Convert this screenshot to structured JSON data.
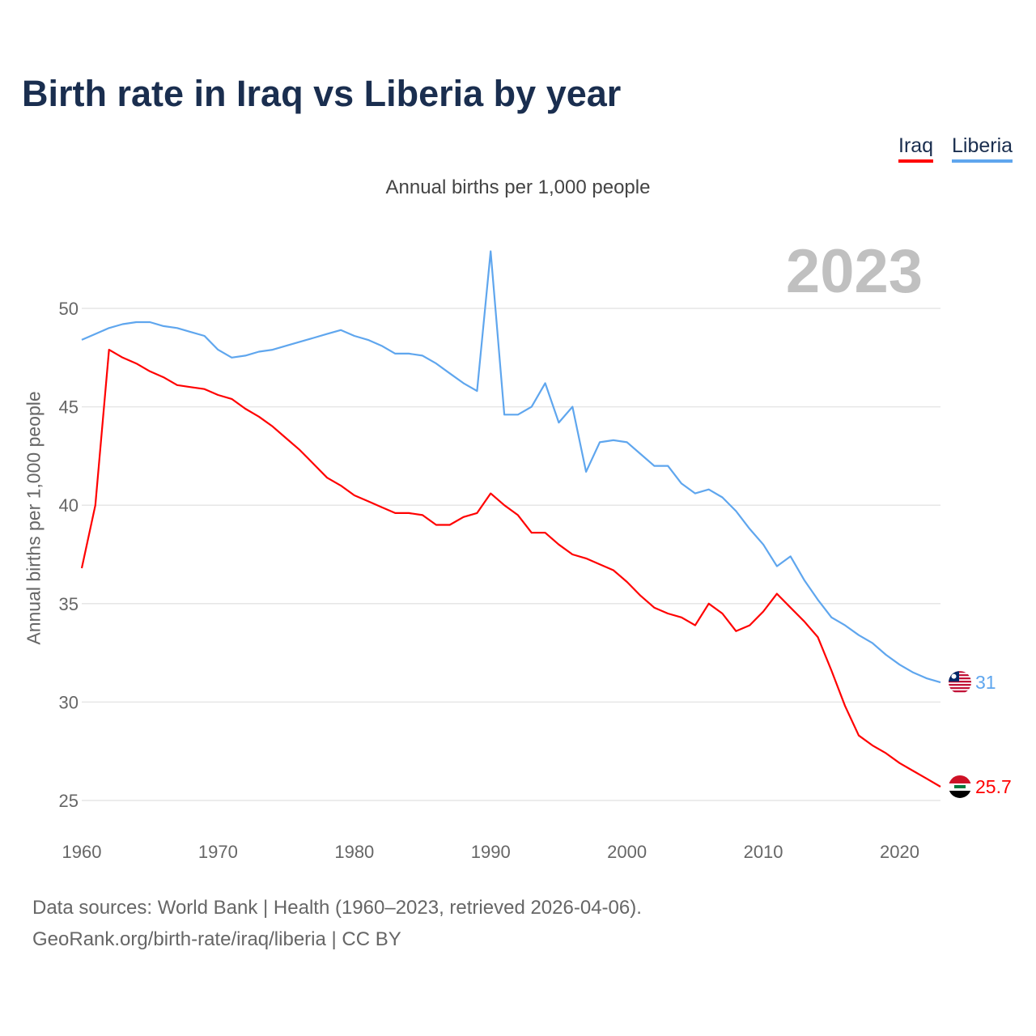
{
  "chart_data": {
    "type": "line",
    "title": "Birth rate in Iraq vs Liberia by year",
    "subtitle": "Annual births per 1,000 people",
    "ylabel": "Annual births per 1,000 people",
    "xlabel": "",
    "year_label": "2023",
    "ylim": [
      25,
      53
    ],
    "xlim": [
      1960,
      2023
    ],
    "y_ticks": [
      25,
      30,
      35,
      40,
      45,
      50
    ],
    "x_ticks": [
      1960,
      1970,
      1980,
      1990,
      2000,
      2010,
      2020
    ],
    "grid": true,
    "legend_position": "top-right",
    "x": [
      1960,
      1961,
      1962,
      1963,
      1964,
      1965,
      1966,
      1967,
      1968,
      1969,
      1970,
      1971,
      1972,
      1973,
      1974,
      1975,
      1976,
      1977,
      1978,
      1979,
      1980,
      1981,
      1982,
      1983,
      1984,
      1985,
      1986,
      1987,
      1988,
      1989,
      1990,
      1991,
      1992,
      1993,
      1994,
      1995,
      1996,
      1997,
      1998,
      1999,
      2000,
      2001,
      2002,
      2003,
      2004,
      2005,
      2006,
      2007,
      2008,
      2009,
      2010,
      2011,
      2012,
      2013,
      2014,
      2015,
      2016,
      2017,
      2018,
      2019,
      2020,
      2021,
      2022,
      2023
    ],
    "series": [
      {
        "name": "Iraq",
        "color": "#ff0000",
        "end_label": "25.7",
        "values": [
          36.8,
          40.0,
          47.9,
          47.5,
          47.2,
          46.8,
          46.5,
          46.1,
          46.0,
          45.9,
          45.6,
          45.4,
          44.9,
          44.5,
          44.0,
          43.4,
          42.8,
          42.1,
          41.4,
          41.0,
          40.5,
          40.2,
          39.9,
          39.6,
          39.6,
          39.5,
          39.0,
          39.0,
          39.4,
          39.6,
          40.6,
          40.0,
          39.5,
          38.6,
          38.6,
          38.0,
          37.5,
          37.3,
          37.0,
          36.7,
          36.1,
          35.4,
          34.8,
          34.5,
          34.3,
          33.9,
          35.0,
          34.5,
          33.6,
          33.9,
          34.6,
          35.5,
          34.8,
          34.1,
          33.3,
          31.6,
          29.8,
          28.3,
          27.8,
          27.4,
          26.9,
          26.5,
          26.1,
          25.7
        ]
      },
      {
        "name": "Liberia",
        "color": "#5fa6ee",
        "end_label": "31",
        "values": [
          48.4,
          48.7,
          49.0,
          49.2,
          49.3,
          49.3,
          49.1,
          49.0,
          48.8,
          48.6,
          47.9,
          47.5,
          47.6,
          47.8,
          47.9,
          48.1,
          48.3,
          48.5,
          48.7,
          48.9,
          48.6,
          48.4,
          48.1,
          47.7,
          47.7,
          47.6,
          47.2,
          46.7,
          46.2,
          45.8,
          52.9,
          44.6,
          44.6,
          45.0,
          46.2,
          44.2,
          45.0,
          41.7,
          43.2,
          43.3,
          43.2,
          42.6,
          42.0,
          42.0,
          41.1,
          40.6,
          40.8,
          40.4,
          39.7,
          38.8,
          38.0,
          36.9,
          37.4,
          36.2,
          35.2,
          34.3,
          33.9,
          33.4,
          33.0,
          32.4,
          31.9,
          31.5,
          31.2,
          31.0
        ]
      }
    ]
  },
  "footer": {
    "source": "Data sources: World Bank | Health (1960–2023, retrieved 2026-04-06).",
    "credit": "GeoRank.org/birth-rate/iraq/liberia | CC BY"
  }
}
